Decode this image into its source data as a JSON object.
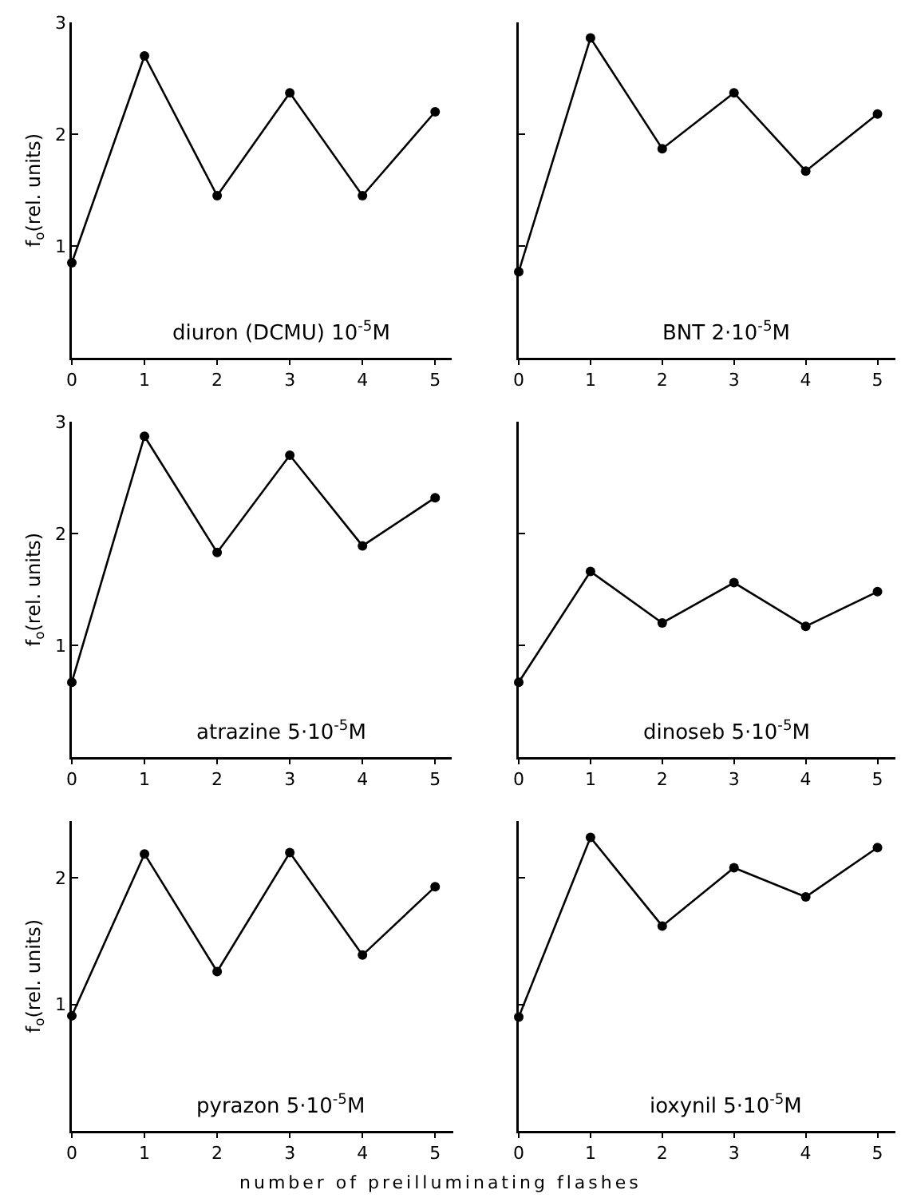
{
  "chart_data": [
    {
      "type": "line",
      "ylabel": "f$_{o}$(rel. units)",
      "x": [
        0,
        1,
        2,
        3,
        4,
        5
      ],
      "xlim": [
        0,
        5.25
      ],
      "xticks": [
        0,
        1,
        2,
        3,
        4,
        5
      ],
      "ylim": [
        0,
        3
      ],
      "yticks": [
        1,
        2,
        3
      ],
      "grid": false,
      "marker": "circle",
      "line_style": "solid",
      "annotations": [
        "diuron (DCMU) 10$^{-5}$M"
      ],
      "series": [
        {
          "color": "#000000",
          "values": [
            0.85,
            2.7,
            1.45,
            2.37,
            1.45,
            2.2
          ]
        }
      ]
    },
    {
      "type": "line",
      "x": [
        0,
        1,
        2,
        3,
        4,
        5
      ],
      "xlim": [
        0,
        5.25
      ],
      "xticks": [
        0,
        1,
        2,
        3,
        4,
        5
      ],
      "ylim": [
        0,
        3
      ],
      "yticks": [
        {
          "value": 1,
          "label": null
        },
        {
          "value": 2,
          "label": null
        },
        {
          "value": 3,
          "label": null
        }
      ],
      "tick_labels": "x",
      "grid": false,
      "marker": "circle",
      "line_style": "solid",
      "annotations": [
        "BNT 2·10$^{-5}$M"
      ],
      "series": [
        {
          "color": "#000000",
          "values": [
            0.77,
            2.86,
            1.87,
            2.37,
            1.67,
            2.18
          ]
        }
      ]
    },
    {
      "type": "line",
      "ylabel": "f$_{o}$(rel. units)",
      "x": [
        0,
        1,
        2,
        3,
        4,
        5
      ],
      "xlim": [
        0,
        5.25
      ],
      "xticks": [
        0,
        1,
        2,
        3,
        4,
        5
      ],
      "ylim": [
        0,
        3
      ],
      "yticks": [
        1,
        2,
        3
      ],
      "grid": false,
      "marker": "circle",
      "line_style": "solid",
      "annotations": [
        "atrazine 5·10$^{-5}$M"
      ],
      "series": [
        {
          "color": "#000000",
          "values": [
            0.67,
            2.87,
            1.83,
            2.7,
            1.89,
            2.32
          ]
        }
      ]
    },
    {
      "type": "line",
      "x": [
        0,
        1,
        2,
        3,
        4,
        5
      ],
      "xlim": [
        0,
        5.25
      ],
      "xticks": [
        0,
        1,
        2,
        3,
        4,
        5
      ],
      "ylim": [
        0,
        3
      ],
      "yticks": [
        {
          "value": 1,
          "label": null
        },
        {
          "value": 2,
          "label": null
        },
        {
          "value": 3,
          "label": null
        }
      ],
      "tick_labels": "x",
      "grid": false,
      "marker": "circle",
      "line_style": "solid",
      "annotations": [
        "dinoseb 5·10$^{-5}$M"
      ],
      "series": [
        {
          "color": "#000000",
          "values": [
            0.67,
            1.66,
            1.2,
            1.56,
            1.17,
            1.48
          ]
        }
      ]
    },
    {
      "type": "line",
      "ylabel": "f$_{o}$(rel. units)",
      "xlabel": "number of preilluminating flashes",
      "x": [
        0,
        1,
        2,
        3,
        4,
        5
      ],
      "xlim": [
        0,
        5.25
      ],
      "xticks": [
        0,
        1,
        2,
        3,
        4,
        5
      ],
      "ylim": [
        0,
        2.45
      ],
      "yticks": [
        1,
        2
      ],
      "grid": false,
      "marker": "circle",
      "line_style": "solid",
      "annotations": [
        "pyrazon 5·10$^{-5}$M"
      ],
      "series": [
        {
          "color": "#000000",
          "values": [
            0.91,
            2.19,
            1.26,
            2.2,
            1.39,
            1.93
          ]
        }
      ]
    },
    {
      "type": "line",
      "x": [
        0,
        1,
        2,
        3,
        4,
        5
      ],
      "xlim": [
        0,
        5.25
      ],
      "xticks": [
        0,
        1,
        2,
        3,
        4,
        5
      ],
      "ylim": [
        0,
        2.45
      ],
      "yticks": [
        {
          "value": 1,
          "label": null
        },
        {
          "value": 2,
          "label": null
        }
      ],
      "tick_labels": "x",
      "grid": false,
      "marker": "circle",
      "line_style": "solid",
      "annotations": [
        "ioxynil 5·10$^{-5}$M"
      ],
      "series": [
        {
          "color": "#000000",
          "values": [
            0.9,
            2.32,
            1.62,
            2.08,
            1.85,
            2.24
          ]
        }
      ]
    }
  ]
}
